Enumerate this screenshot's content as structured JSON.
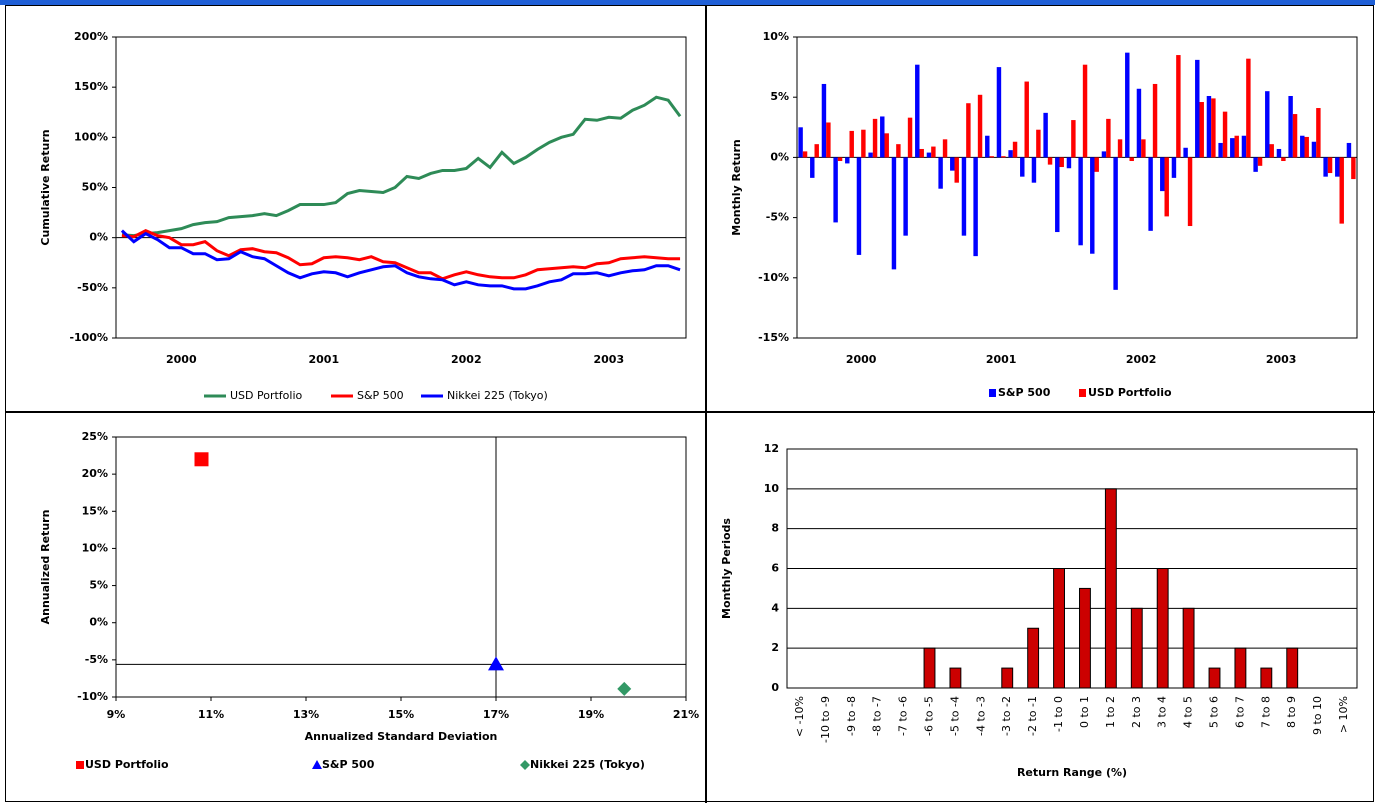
{
  "chart_data": [
    {
      "type": "line",
      "ylabel": "Cumulative Return",
      "categories": [
        null,
        null,
        null,
        null,
        null,
        "2000",
        null,
        null,
        null,
        null,
        null,
        null,
        null,
        null,
        null,
        null,
        null,
        "2001",
        null,
        null,
        null,
        null,
        null,
        null,
        null,
        null,
        null,
        null,
        null,
        "2002",
        null,
        null,
        null,
        null,
        null,
        null,
        null,
        null,
        null,
        null,
        null,
        "2003",
        null,
        null,
        null,
        null,
        null,
        null
      ],
      "series": [
        {
          "name": "USD Portfolio",
          "color": "#2e8b57",
          "values": [
            3,
            2,
            4,
            5,
            7,
            9,
            13,
            15,
            16,
            20,
            21,
            22,
            24,
            22,
            27,
            33,
            33,
            33,
            35,
            44,
            47,
            46,
            45,
            50,
            61,
            59,
            64,
            67,
            67,
            69,
            79,
            70,
            85,
            74,
            80,
            88,
            95,
            100,
            103,
            118,
            117,
            120,
            119,
            127,
            132,
            140,
            137,
            121
          ]
        },
        {
          "name": "S&P 500",
          "color": "#ff0000",
          "values": [
            2,
            1,
            7,
            2,
            0,
            -7,
            -7,
            -4,
            -13,
            -18,
            -12,
            -11,
            -14,
            -15,
            -20,
            -27,
            -26,
            -20,
            -19,
            -20,
            -22,
            -19,
            -24,
            -25,
            -30,
            -35,
            -35,
            -41,
            -37,
            -34,
            -37,
            -39,
            -40,
            -40,
            -37,
            -32,
            -31,
            -30,
            -29,
            -30,
            -26,
            -25,
            -21,
            -20,
            -19,
            -20,
            -21,
            -21
          ]
        },
        {
          "name": "Nikkei 225 (Tokyo)",
          "color": "#0000ff",
          "values": [
            7,
            -4,
            4,
            -2,
            -10,
            -10,
            -16,
            -16,
            -22,
            -21,
            -14,
            -19,
            -21,
            -28,
            -35,
            -40,
            -36,
            -34,
            -35,
            -39,
            -35,
            -32,
            -29,
            -28,
            -35,
            -39,
            -41,
            -42,
            -47,
            -44,
            -47,
            -48,
            -48,
            -51,
            -51,
            -48,
            -44,
            -42,
            -36,
            -36,
            -35,
            -38,
            -35,
            -33,
            -32,
            -28,
            -28,
            -32
          ]
        }
      ],
      "ylim": [
        -100,
        200
      ],
      "yticks": [
        {
          "value": -100,
          "label": "-100%"
        },
        {
          "value": -50,
          "label": "-50%"
        },
        {
          "value": 0,
          "label": "0%"
        },
        {
          "value": 50,
          "label": "50%"
        },
        {
          "value": 100,
          "label": "100%"
        },
        {
          "value": 150,
          "label": "150%"
        },
        {
          "value": 200,
          "label": "200%"
        }
      ],
      "legend": "bottom"
    },
    {
      "type": "bar",
      "ylabel": "Monthly Return",
      "categories": [
        null,
        null,
        null,
        null,
        null,
        "2000",
        null,
        null,
        null,
        null,
        null,
        null,
        null,
        null,
        null,
        null,
        null,
        "2001",
        null,
        null,
        null,
        null,
        null,
        null,
        null,
        null,
        null,
        null,
        null,
        "2002",
        null,
        null,
        null,
        null,
        null,
        null,
        null,
        null,
        null,
        null,
        null,
        "2003",
        null,
        null,
        null,
        null,
        null,
        null
      ],
      "series": [
        {
          "name": "S&P 500",
          "color": "#0000ff",
          "values": [
            2.5,
            -1.7,
            6.1,
            -5.4,
            -0.5,
            -8.1,
            0.4,
            3.4,
            -9.3,
            -6.5,
            7.7,
            0.4,
            -2.6,
            -1.1,
            -6.5,
            -8.2,
            1.8,
            7.5,
            0.6,
            -1.6,
            -2.1,
            3.7,
            -6.2,
            -0.9,
            -7.3,
            -8.0,
            0.5,
            -11,
            8.7,
            5.7,
            -6.1,
            -2.8,
            -1.7,
            0.8,
            8.1,
            5.1,
            1.2,
            1.6,
            1.8,
            -1.2,
            5.5,
            0.7,
            5.1,
            1.8,
            1.3,
            -1.6,
            -1.6,
            1.2
          ]
        },
        {
          "name": "USD Portfolio",
          "color": "#ff0000",
          "values": [
            0.5,
            1.1,
            2.9,
            -0.3,
            2.2,
            2.3,
            3.2,
            2.0,
            1.1,
            3.3,
            0.7,
            0.9,
            1.5,
            -2.1,
            4.5,
            5.2,
            0.1,
            0.1,
            1.3,
            6.3,
            2.3,
            -0.6,
            -0.8,
            3.1,
            7.7,
            -1.2,
            3.2,
            1.5,
            -0.3,
            1.5,
            6.1,
            -4.9,
            8.5,
            -5.7,
            4.6,
            4.9,
            3.8,
            1.8,
            8.2,
            -0.7,
            1.1,
            -0.3,
            3.6,
            1.7,
            4.1,
            -1.3,
            -5.5,
            -1.8
          ]
        }
      ],
      "ylim": [
        -15,
        10
      ],
      "yticks": [
        {
          "value": -15,
          "label": "-15%"
        },
        {
          "value": -10,
          "label": "-10%"
        },
        {
          "value": -5,
          "label": "-5%"
        },
        {
          "value": 0,
          "label": "0%"
        },
        {
          "value": 5,
          "label": "5%"
        },
        {
          "value": 10,
          "label": "10%"
        }
      ],
      "legend": "bottom"
    },
    {
      "type": "scatter",
      "xlabel": "Annualized Standard Deviation",
      "ylabel": "Annualized Return",
      "series": [
        {
          "name": "USD Portfolio",
          "color": "#ff0000",
          "marker": "square",
          "x": [
            10.8
          ],
          "values": [
            22
          ]
        },
        {
          "name": "S&P 500",
          "color": "#0000ff",
          "marker": "triangle",
          "x": [
            17.0
          ],
          "values": [
            -5.6
          ]
        },
        {
          "name": "Nikkei 225 (Tokyo)",
          "color": "#339966",
          "marker": "diamond",
          "x": [
            19.7
          ],
          "values": [
            -8.9
          ]
        }
      ],
      "xlim": [
        9,
        21
      ],
      "xticks": [
        {
          "value": 9,
          "label": "9%"
        },
        {
          "value": 11,
          "label": "11%"
        },
        {
          "value": 13,
          "label": "13%"
        },
        {
          "value": 15,
          "label": "15%"
        },
        {
          "value": 17,
          "label": "17%"
        },
        {
          "value": 19,
          "label": "19%"
        },
        {
          "value": 21,
          "label": "21%"
        }
      ],
      "ylim": [
        -10,
        25
      ],
      "yticks": [
        {
          "value": -10,
          "label": "-10%"
        },
        {
          "value": -5,
          "label": "-5%"
        },
        {
          "value": 0,
          "label": "0%"
        },
        {
          "value": 5,
          "label": "5%"
        },
        {
          "value": 10,
          "label": "10%"
        },
        {
          "value": 15,
          "label": "15%"
        },
        {
          "value": 20,
          "label": "20%"
        },
        {
          "value": 25,
          "label": "25%"
        }
      ],
      "legend": "bottom"
    },
    {
      "type": "bar",
      "xlabel": "Return Range (%)",
      "ylabel": "Monthly Periods",
      "categories": [
        "< -10%",
        "-10 to -9",
        "-9 to -8",
        "-8 to -7",
        "-7 to -6",
        "-6 to -5",
        "-5 to -4",
        "-4 to -3",
        "-3 to -2",
        "-2 to -1",
        "-1 to 0",
        "0 to 1",
        "1 to 2",
        "2 to 3",
        "3 to 4",
        "4 to 5",
        "5 to 6",
        "6 to 7",
        "7 to 8",
        "8 to 9",
        "9 to 10",
        "> 10%"
      ],
      "values": [
        0,
        0,
        0,
        0,
        0,
        2,
        1,
        0,
        1,
        3,
        6,
        5,
        10,
        4,
        6,
        4,
        1,
        2,
        1,
        2,
        0,
        0
      ],
      "color": "#cc0000",
      "ylim": [
        0,
        12
      ],
      "yticks": [
        0,
        2,
        4,
        6,
        8,
        10,
        12
      ],
      "grid": true
    }
  ]
}
